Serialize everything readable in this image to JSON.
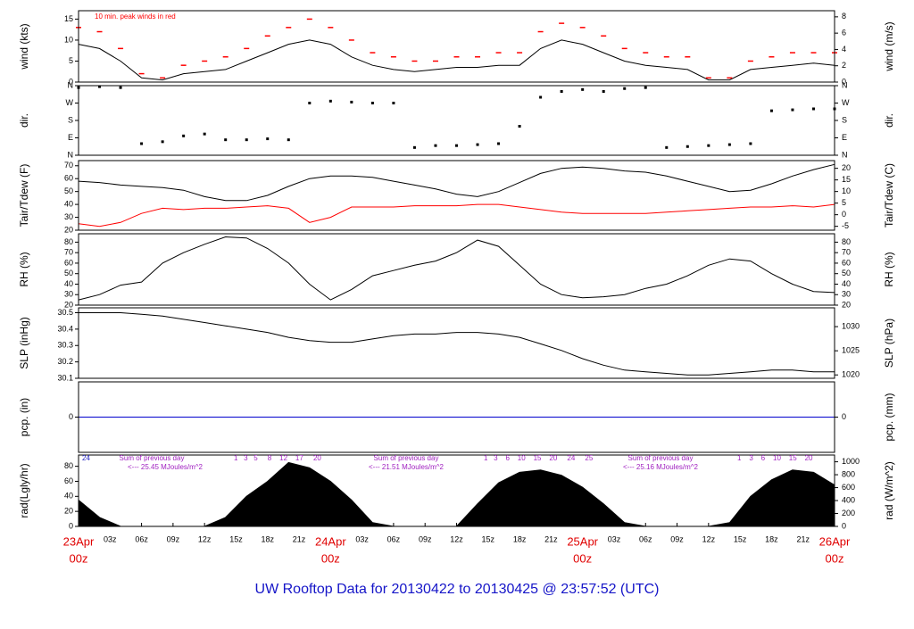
{
  "footer": "UW Rooftop Data for 20130422  to  20130425 @ 23:57:52  (UTC)",
  "chart_data": [
    {
      "type": "line",
      "ylabel": "wind (kts)",
      "y2label": "wind (m/s)",
      "annotation": "10 min. peak winds in red",
      "xlim": [
        0,
        72
      ],
      "ylim": [
        0,
        17
      ],
      "yticks": [
        0,
        5,
        10,
        15
      ],
      "y2lim": [
        0,
        8.75
      ],
      "y2ticks": [
        0,
        2,
        4,
        6,
        8
      ],
      "x": [
        0,
        2,
        4,
        6,
        8,
        10,
        12,
        14,
        16,
        18,
        20,
        22,
        24,
        26,
        28,
        30,
        32,
        34,
        36,
        38,
        40,
        42,
        44,
        46,
        48,
        50,
        52,
        54,
        56,
        58,
        60,
        62,
        64,
        66,
        68,
        70,
        72
      ],
      "series": [
        {
          "color": "#000000",
          "style": "line",
          "values": [
            9,
            8,
            5,
            1,
            0.5,
            2,
            2.5,
            3,
            5,
            7,
            9,
            10,
            9,
            6,
            4,
            3,
            2.5,
            3,
            3.5,
            3.5,
            4,
            4,
            8,
            10,
            9,
            7,
            5,
            4,
            3.5,
            3,
            0.5,
            0.5,
            3,
            3.5,
            4,
            4.5,
            4
          ]
        },
        {
          "color": "#ff0000",
          "style": "dash",
          "values": [
            13,
            12,
            8,
            2,
            1,
            4,
            5,
            6,
            8,
            11,
            13,
            15,
            13,
            10,
            7,
            6,
            5,
            5,
            6,
            6,
            7,
            7,
            12,
            14,
            13,
            11,
            8,
            7,
            6,
            6,
            1,
            1,
            5,
            6,
            7,
            7,
            7
          ]
        }
      ]
    },
    {
      "type": "scatter",
      "ylabel": "dir.",
      "xlim": [
        0,
        72
      ],
      "ylim": [
        0,
        360
      ],
      "yticks": [
        {
          "value": 0,
          "label": "N"
        },
        {
          "value": 90,
          "label": "E"
        },
        {
          "value": 180,
          "label": "S"
        },
        {
          "value": 270,
          "label": "W"
        },
        {
          "value": 360,
          "label": "N"
        }
      ],
      "y2lim": [
        0,
        360
      ],
      "y2ticks": [
        {
          "value": 0,
          "label": "N"
        },
        {
          "value": 90,
          "label": "E"
        },
        {
          "value": 180,
          "label": "S"
        },
        {
          "value": 270,
          "label": "W"
        },
        {
          "value": 360,
          "label": "N"
        }
      ],
      "y2label": "dir.",
      "x": [
        0,
        2,
        4,
        6,
        8,
        10,
        12,
        14,
        16,
        18,
        20,
        22,
        24,
        26,
        28,
        30,
        32,
        34,
        36,
        38,
        40,
        42,
        44,
        46,
        48,
        50,
        52,
        54,
        56,
        58,
        60,
        62,
        64,
        66,
        68,
        70,
        72
      ],
      "series": [
        {
          "color": "#000000",
          "values": [
            350,
            355,
            350,
            60,
            70,
            100,
            110,
            80,
            80,
            85,
            80,
            270,
            280,
            275,
            270,
            270,
            40,
            50,
            50,
            55,
            60,
            150,
            300,
            330,
            340,
            330,
            345,
            350,
            40,
            45,
            50,
            55,
            60,
            230,
            235,
            240,
            240
          ]
        }
      ]
    },
    {
      "type": "line",
      "ylabel": "Tair/Tdew (F)",
      "y2label": "Tair/Tdew (C)",
      "xlim": [
        0,
        72
      ],
      "ylim": [
        20,
        74
      ],
      "yticks": [
        20,
        30,
        40,
        50,
        60,
        70
      ],
      "y2lim": [
        -6.67,
        23.33
      ],
      "y2ticks": [
        -5,
        0,
        5,
        10,
        15,
        20
      ],
      "x": [
        0,
        2,
        4,
        6,
        8,
        10,
        12,
        14,
        16,
        18,
        20,
        22,
        24,
        26,
        28,
        30,
        32,
        34,
        36,
        38,
        40,
        42,
        44,
        46,
        48,
        50,
        52,
        54,
        56,
        58,
        60,
        62,
        64,
        66,
        68,
        70,
        72
      ],
      "series": [
        {
          "color": "#000000",
          "style": "line",
          "values": [
            58,
            57,
            55,
            54,
            53,
            51,
            46,
            43,
            43,
            47,
            54,
            60,
            62,
            62,
            61,
            58,
            55,
            52,
            48,
            46,
            50,
            57,
            64,
            68,
            69,
            68,
            66,
            65,
            62,
            58,
            54,
            50,
            51,
            56,
            62,
            67,
            71
          ]
        },
        {
          "color": "#ff0000",
          "style": "line",
          "values": [
            25,
            23,
            26,
            33,
            37,
            36,
            37,
            37,
            38,
            39,
            37,
            26,
            30,
            38,
            38,
            38,
            39,
            39,
            39,
            40,
            40,
            38,
            36,
            34,
            33,
            33,
            33,
            33,
            34,
            35,
            36,
            37,
            38,
            38,
            39,
            38,
            40
          ]
        }
      ]
    },
    {
      "type": "line",
      "ylabel": "RH (%)",
      "y2label": "RH (%)",
      "xlim": [
        0,
        72
      ],
      "ylim": [
        20,
        88
      ],
      "yticks": [
        20,
        30,
        40,
        50,
        60,
        70,
        80
      ],
      "y2lim": [
        20,
        88
      ],
      "y2ticks": [
        20,
        30,
        40,
        50,
        60,
        70,
        80
      ],
      "x": [
        0,
        2,
        4,
        6,
        8,
        10,
        12,
        14,
        16,
        18,
        20,
        22,
        24,
        26,
        28,
        30,
        32,
        34,
        36,
        38,
        40,
        42,
        44,
        46,
        48,
        50,
        52,
        54,
        56,
        58,
        60,
        62,
        64,
        66,
        68,
        70,
        72
      ],
      "series": [
        {
          "color": "#000000",
          "style": "line",
          "values": [
            25,
            30,
            39,
            42,
            60,
            70,
            78,
            85,
            84,
            74,
            60,
            40,
            25,
            35,
            48,
            53,
            58,
            62,
            70,
            82,
            76,
            58,
            40,
            30,
            27,
            28,
            30,
            36,
            40,
            48,
            58,
            64,
            62,
            50,
            40,
            33,
            32
          ]
        }
      ]
    },
    {
      "type": "line",
      "ylabel": "SLP (inHg)",
      "y2label": "SLP (hPa)",
      "xlim": [
        0,
        72
      ],
      "ylim": [
        30.1,
        30.53
      ],
      "yticks": [
        30.1,
        30.2,
        30.3,
        30.4,
        30.5
      ],
      "y2lim": [
        1019.3,
        1033.9
      ],
      "y2ticks": [
        1020,
        1025,
        1030
      ],
      "x": [
        0,
        2,
        4,
        6,
        8,
        10,
        12,
        14,
        16,
        18,
        20,
        22,
        24,
        26,
        28,
        30,
        32,
        34,
        36,
        38,
        40,
        42,
        44,
        46,
        48,
        50,
        52,
        54,
        56,
        58,
        60,
        62,
        64,
        66,
        68,
        70,
        72
      ],
      "series": [
        {
          "color": "#000000",
          "style": "line",
          "values": [
            30.5,
            30.5,
            30.5,
            30.49,
            30.48,
            30.46,
            30.44,
            30.42,
            30.4,
            30.38,
            30.35,
            30.33,
            30.32,
            30.32,
            30.34,
            30.36,
            30.37,
            30.37,
            30.38,
            30.38,
            30.37,
            30.35,
            30.31,
            30.27,
            30.22,
            30.18,
            30.15,
            30.14,
            30.13,
            30.12,
            30.12,
            30.13,
            30.14,
            30.15,
            30.15,
            30.14,
            30.14
          ]
        }
      ]
    },
    {
      "type": "line",
      "ylabel": "pcp. (in)",
      "y2label": "pcp. (mm)",
      "xlim": [
        0,
        72
      ],
      "ylim": [
        -1,
        1
      ],
      "yticks": [
        0
      ],
      "y2lim": [
        -25.4,
        25.4
      ],
      "y2ticks": [
        0
      ],
      "x": [
        0,
        2,
        4,
        6,
        8,
        10,
        12,
        14,
        16,
        18,
        20,
        22,
        24,
        26,
        28,
        30,
        32,
        34,
        36,
        38,
        40,
        42,
        44,
        46,
        48,
        50,
        52,
        54,
        56,
        58,
        60,
        62,
        64,
        66,
        68,
        70,
        72
      ],
      "series": [
        {
          "color": "#0000cc",
          "style": "line",
          "values": [
            0,
            0,
            0,
            0,
            0,
            0,
            0,
            0,
            0,
            0,
            0,
            0,
            0,
            0,
            0,
            0,
            0,
            0,
            0,
            0,
            0,
            0,
            0,
            0,
            0,
            0,
            0,
            0,
            0,
            0,
            0,
            0,
            0,
            0,
            0,
            0,
            0
          ]
        }
      ]
    },
    {
      "type": "area",
      "ylabel": "rad(Lgly/hr)",
      "y2label": "rad (W/m^2)",
      "xlim": [
        0,
        72
      ],
      "ylim": [
        0,
        95
      ],
      "yticks": [
        0,
        20,
        40,
        60,
        80
      ],
      "y2lim": [
        0,
        1104.9
      ],
      "y2ticks": [
        0,
        200,
        400,
        600,
        800,
        1000
      ],
      "annotations": [
        "24",
        "Sum of previous day",
        "<--- 25.45 MJoules/m^2",
        "1   3   5     8    12    17     20",
        "Sum of previous day",
        "<--- 21.51 MJoules/m^2",
        "1   3    6    10    15    20     24     25",
        "Sum of previous day",
        "<--- 25.16 MJoules/m^2",
        "1    3    6    10    15    20"
      ],
      "xticks": [
        {
          "value": 0,
          "label": "23Apr",
          "label2": "00z"
        },
        {
          "value": 3,
          "label": "03z"
        },
        {
          "value": 6,
          "label": "06z"
        },
        {
          "value": 9,
          "label": "09z"
        },
        {
          "value": 12,
          "label": "12z"
        },
        {
          "value": 15,
          "label": "15z"
        },
        {
          "value": 18,
          "label": "18z"
        },
        {
          "value": 21,
          "label": "21z"
        },
        {
          "value": 24,
          "label": "24Apr",
          "label2": "00z"
        },
        {
          "value": 27,
          "label": "03z"
        },
        {
          "value": 30,
          "label": "06z"
        },
        {
          "value": 33,
          "label": "09z"
        },
        {
          "value": 36,
          "label": "12z"
        },
        {
          "value": 39,
          "label": "15z"
        },
        {
          "value": 42,
          "label": "18z"
        },
        {
          "value": 45,
          "label": "21z"
        },
        {
          "value": 48,
          "label": "25Apr",
          "label2": "00z"
        },
        {
          "value": 51,
          "label": "03z"
        },
        {
          "value": 54,
          "label": "06z"
        },
        {
          "value": 57,
          "label": "09z"
        },
        {
          "value": 60,
          "label": "12z"
        },
        {
          "value": 63,
          "label": "15z"
        },
        {
          "value": 66,
          "label": "18z"
        },
        {
          "value": 69,
          "label": "21z"
        },
        {
          "value": 72,
          "label": "26Apr",
          "label2": "00z"
        }
      ],
      "x": [
        0,
        2,
        4,
        6,
        8,
        10,
        12,
        14,
        16,
        18,
        20,
        22,
        24,
        26,
        28,
        30,
        32,
        34,
        36,
        38,
        40,
        42,
        44,
        46,
        48,
        50,
        52,
        54,
        56,
        58,
        60,
        62,
        64,
        66,
        68,
        70,
        72
      ],
      "series": [
        {
          "color": "#000000",
          "values": [
            35,
            12,
            0,
            0,
            0,
            0,
            0,
            12,
            40,
            60,
            85,
            78,
            60,
            35,
            5,
            0,
            0,
            0,
            0,
            30,
            58,
            72,
            75,
            68,
            52,
            30,
            5,
            0,
            0,
            0,
            0,
            5,
            40,
            62,
            75,
            72,
            55
          ]
        }
      ]
    }
  ]
}
